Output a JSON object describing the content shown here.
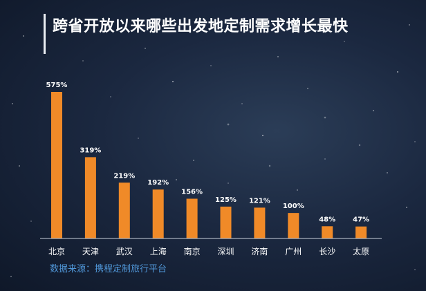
{
  "title": "跨省开放以来哪些出发地定制需求增长最快",
  "source": "数据来源：携程定制旅行平台",
  "colors": {
    "bar": "#f08a28",
    "axis": "#c9d1dc",
    "text": "#ffffff",
    "source": "#4f95d6"
  },
  "chart_data": {
    "type": "bar",
    "title": "跨省开放以来哪些出发地定制需求增长最快",
    "categories": [
      "北京",
      "天津",
      "武汉",
      "上海",
      "南京",
      "深圳",
      "济南",
      "广州",
      "长沙",
      "太原"
    ],
    "values": [
      575,
      319,
      219,
      192,
      156,
      125,
      121,
      100,
      48,
      47
    ],
    "data_labels": [
      "575%",
      "319%",
      "219%",
      "192%",
      "156%",
      "125%",
      "121%",
      "100%",
      "48%",
      "47%"
    ],
    "unit": "%",
    "ylim": [
      0,
      575
    ],
    "grid": false,
    "legend": "none"
  }
}
